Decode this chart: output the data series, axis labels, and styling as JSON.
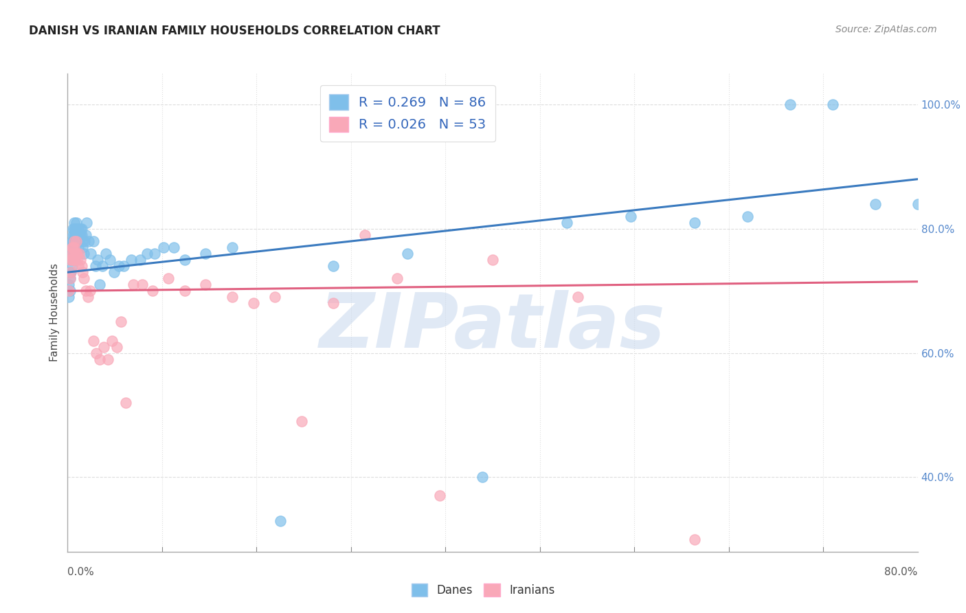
{
  "title": "DANISH VS IRANIAN FAMILY HOUSEHOLDS CORRELATION CHART",
  "source": "Source: ZipAtlas.com",
  "ylabel": "Family Households",
  "background_color": "#ffffff",
  "danes_color": "#7fbfea",
  "iranians_color": "#f9a8b8",
  "danes_line_color": "#3a7abf",
  "iranians_line_color": "#e06080",
  "legend_R_danes": "0.269",
  "legend_N_danes": "86",
  "legend_R_iranians": "0.026",
  "legend_N_iranians": "53",
  "danes_x": [
    0.001,
    0.001,
    0.002,
    0.002,
    0.002,
    0.003,
    0.003,
    0.003,
    0.003,
    0.004,
    0.004,
    0.004,
    0.004,
    0.004,
    0.005,
    0.005,
    0.005,
    0.005,
    0.005,
    0.006,
    0.006,
    0.006,
    0.006,
    0.007,
    0.007,
    0.007,
    0.007,
    0.007,
    0.007,
    0.008,
    0.008,
    0.008,
    0.008,
    0.008,
    0.009,
    0.009,
    0.009,
    0.01,
    0.01,
    0.01,
    0.01,
    0.011,
    0.011,
    0.012,
    0.012,
    0.013,
    0.013,
    0.014,
    0.014,
    0.015,
    0.016,
    0.017,
    0.018,
    0.02,
    0.022,
    0.024,
    0.026,
    0.028,
    0.03,
    0.033,
    0.036,
    0.04,
    0.044,
    0.048,
    0.053,
    0.06,
    0.068,
    0.075,
    0.082,
    0.09,
    0.1,
    0.11,
    0.13,
    0.155,
    0.2,
    0.25,
    0.32,
    0.39,
    0.47,
    0.53,
    0.59,
    0.64,
    0.68,
    0.72,
    0.76,
    0.8
  ],
  "danes_y": [
    0.69,
    0.71,
    0.7,
    0.72,
    0.73,
    0.73,
    0.75,
    0.76,
    0.77,
    0.76,
    0.75,
    0.74,
    0.76,
    0.78,
    0.78,
    0.8,
    0.79,
    0.76,
    0.75,
    0.78,
    0.8,
    0.79,
    0.81,
    0.8,
    0.79,
    0.78,
    0.77,
    0.76,
    0.75,
    0.79,
    0.8,
    0.81,
    0.79,
    0.78,
    0.8,
    0.79,
    0.78,
    0.8,
    0.79,
    0.78,
    0.77,
    0.78,
    0.79,
    0.8,
    0.79,
    0.8,
    0.79,
    0.78,
    0.77,
    0.76,
    0.78,
    0.79,
    0.81,
    0.78,
    0.76,
    0.78,
    0.74,
    0.75,
    0.71,
    0.74,
    0.76,
    0.75,
    0.73,
    0.74,
    0.74,
    0.75,
    0.75,
    0.76,
    0.76,
    0.77,
    0.77,
    0.75,
    0.76,
    0.77,
    0.33,
    0.74,
    0.76,
    0.4,
    0.81,
    0.82,
    0.81,
    0.82,
    1.0,
    1.0,
    0.84,
    0.84
  ],
  "iranians_x": [
    0.001,
    0.002,
    0.002,
    0.003,
    0.003,
    0.004,
    0.004,
    0.005,
    0.005,
    0.005,
    0.006,
    0.006,
    0.007,
    0.007,
    0.008,
    0.008,
    0.009,
    0.009,
    0.01,
    0.011,
    0.012,
    0.013,
    0.014,
    0.015,
    0.017,
    0.019,
    0.021,
    0.024,
    0.027,
    0.03,
    0.034,
    0.038,
    0.042,
    0.046,
    0.05,
    0.055,
    0.062,
    0.07,
    0.08,
    0.095,
    0.11,
    0.13,
    0.155,
    0.175,
    0.195,
    0.22,
    0.25,
    0.28,
    0.31,
    0.35,
    0.4,
    0.48,
    0.59
  ],
  "iranians_y": [
    0.7,
    0.72,
    0.75,
    0.73,
    0.76,
    0.75,
    0.77,
    0.75,
    0.77,
    0.76,
    0.77,
    0.78,
    0.76,
    0.75,
    0.76,
    0.78,
    0.76,
    0.75,
    0.74,
    0.76,
    0.75,
    0.74,
    0.73,
    0.72,
    0.7,
    0.69,
    0.7,
    0.62,
    0.6,
    0.59,
    0.61,
    0.59,
    0.62,
    0.61,
    0.65,
    0.52,
    0.71,
    0.71,
    0.7,
    0.72,
    0.7,
    0.71,
    0.69,
    0.68,
    0.69,
    0.49,
    0.68,
    0.79,
    0.72,
    0.37,
    0.75,
    0.69,
    0.3
  ],
  "xlim": [
    0.0,
    0.8
  ],
  "ylim": [
    0.28,
    1.05
  ],
  "danes_trend_x": [
    0.0,
    0.8
  ],
  "danes_trend_y": [
    0.73,
    0.88
  ],
  "iranians_trend_x": [
    0.0,
    0.8
  ],
  "iranians_trend_y": [
    0.7,
    0.715
  ],
  "right_y_ticks": [
    1.0,
    0.8,
    0.6,
    0.4
  ],
  "right_y_labels": [
    "100.0%",
    "80.0%",
    "60.0%",
    "40.0%"
  ],
  "x_left_label": "0.0%",
  "x_right_label": "80.0%",
  "grid_color": "#dddddd",
  "watermark": "ZIPatlas",
  "watermark_color": "#c8d8ee"
}
